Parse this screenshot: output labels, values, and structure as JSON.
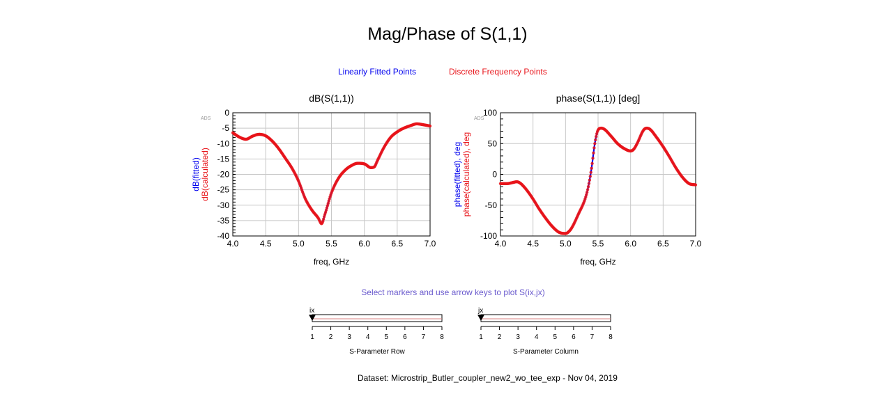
{
  "title": "Mag/Phase of S(1,1)",
  "legend": {
    "fitted": "Linearly Fitted Points",
    "calculated": "Discrete Frequency Points",
    "fitted_color": "#0000ee",
    "calculated_color": "#e8141a"
  },
  "instruction": "Select markers and use arrow keys to plot S(ix,jx)",
  "dataset": "Dataset: Microstrip_Butler_coupler_new2_wo_tee_exp - Nov 04, 2019",
  "ads_tag": "ADS",
  "chart_data": [
    {
      "type": "line",
      "title": "dB(S(1,1))",
      "xlabel": "freq, GHz",
      "ylabel_fitted": "dB(fitted)",
      "ylabel_calculated": "dB(calculated)",
      "xlim": [
        4.0,
        7.0
      ],
      "ylim": [
        -40,
        0
      ],
      "xticks": [
        4.0,
        4.5,
        5.0,
        5.5,
        6.0,
        6.5,
        7.0
      ],
      "xtick_labels": [
        "4.0",
        "4.5",
        "5.0",
        "5.5",
        "6.0",
        "6.5",
        "7.0"
      ],
      "yticks": [
        0,
        -5,
        -10,
        -15,
        -20,
        -25,
        -30,
        -35,
        -40
      ],
      "ytick_labels": [
        "0",
        "-5",
        "-10",
        "-15",
        "-20",
        "-25",
        "-30",
        "-35",
        "-40"
      ],
      "grid": true,
      "series": [
        {
          "name": "dB(fitted)",
          "color": "#0000ee"
        },
        {
          "name": "dB(calculated)",
          "color": "#e8141a"
        }
      ],
      "x": [
        4.0,
        4.1,
        4.2,
        4.3,
        4.4,
        4.5,
        4.6,
        4.7,
        4.8,
        4.9,
        5.0,
        5.1,
        5.2,
        5.3,
        5.35,
        5.4,
        5.5,
        5.6,
        5.7,
        5.8,
        5.9,
        6.0,
        6.1,
        6.15,
        6.2,
        6.3,
        6.4,
        6.5,
        6.6,
        6.7,
        6.8,
        6.9,
        7.0
      ],
      "y": [
        -6.5,
        -7.9,
        -8.6,
        -7.6,
        -7.0,
        -7.5,
        -9.2,
        -11.7,
        -14.8,
        -18.0,
        -22.2,
        -27.8,
        -31.5,
        -34.2,
        -36.0,
        -33.0,
        -26.0,
        -21.5,
        -18.8,
        -17.2,
        -16.4,
        -16.6,
        -17.8,
        -17.6,
        -15.5,
        -11.2,
        -8.0,
        -6.2,
        -5.0,
        -4.2,
        -3.6,
        -3.9,
        -4.3
      ]
    },
    {
      "type": "line",
      "title": "phase(S(1,1)) [deg]",
      "xlabel": "freq, GHz",
      "ylabel_fitted": "phase(fitted), deg",
      "ylabel_calculated": "phase(calculated), deg",
      "xlim": [
        4.0,
        7.0
      ],
      "ylim": [
        -100,
        100
      ],
      "xticks": [
        4.0,
        4.5,
        5.0,
        5.5,
        6.0,
        6.5,
        7.0
      ],
      "xtick_labels": [
        "4.0",
        "4.5",
        "5.0",
        "5.5",
        "6.0",
        "6.5",
        "7.0"
      ],
      "yticks": [
        100,
        50,
        0,
        -50,
        -100
      ],
      "ytick_labels": [
        "100",
        "50",
        "0",
        "-50",
        "-100"
      ],
      "grid": true,
      "series": [
        {
          "name": "phase(fitted), deg",
          "color": "#0000ee"
        },
        {
          "name": "phase(calculated), deg",
          "color": "#e8141a"
        }
      ],
      "x": [
        4.0,
        4.1,
        4.2,
        4.25,
        4.3,
        4.4,
        4.5,
        4.6,
        4.7,
        4.8,
        4.9,
        5.0,
        5.05,
        5.1,
        5.2,
        5.3,
        5.35,
        5.4,
        5.45,
        5.5,
        5.55,
        5.6,
        5.7,
        5.8,
        5.9,
        6.0,
        6.05,
        6.1,
        6.2,
        6.25,
        6.3,
        6.4,
        6.5,
        6.6,
        6.7,
        6.8,
        6.9,
        7.0
      ],
      "y": [
        -15,
        -15,
        -13,
        -12,
        -14,
        -25,
        -40,
        -57,
        -72,
        -85,
        -94,
        -96,
        -93,
        -86,
        -64,
        -40,
        -20,
        10,
        50,
        72,
        75,
        73,
        62,
        50,
        42,
        38,
        41,
        50,
        72,
        75,
        73,
        60,
        45,
        28,
        10,
        -5,
        -15,
        -17
      ]
    }
  ],
  "sliders": [
    {
      "var": "ix",
      "label": "S-Parameter Row",
      "min": 1,
      "max": 8,
      "value": 1,
      "ticks": [
        "1",
        "2",
        "3",
        "4",
        "5",
        "6",
        "7",
        "8"
      ]
    },
    {
      "var": "jx",
      "label": "S-Parameter Column",
      "min": 1,
      "max": 8,
      "value": 1,
      "ticks": [
        "1",
        "2",
        "3",
        "4",
        "5",
        "6",
        "7",
        "8"
      ]
    }
  ]
}
